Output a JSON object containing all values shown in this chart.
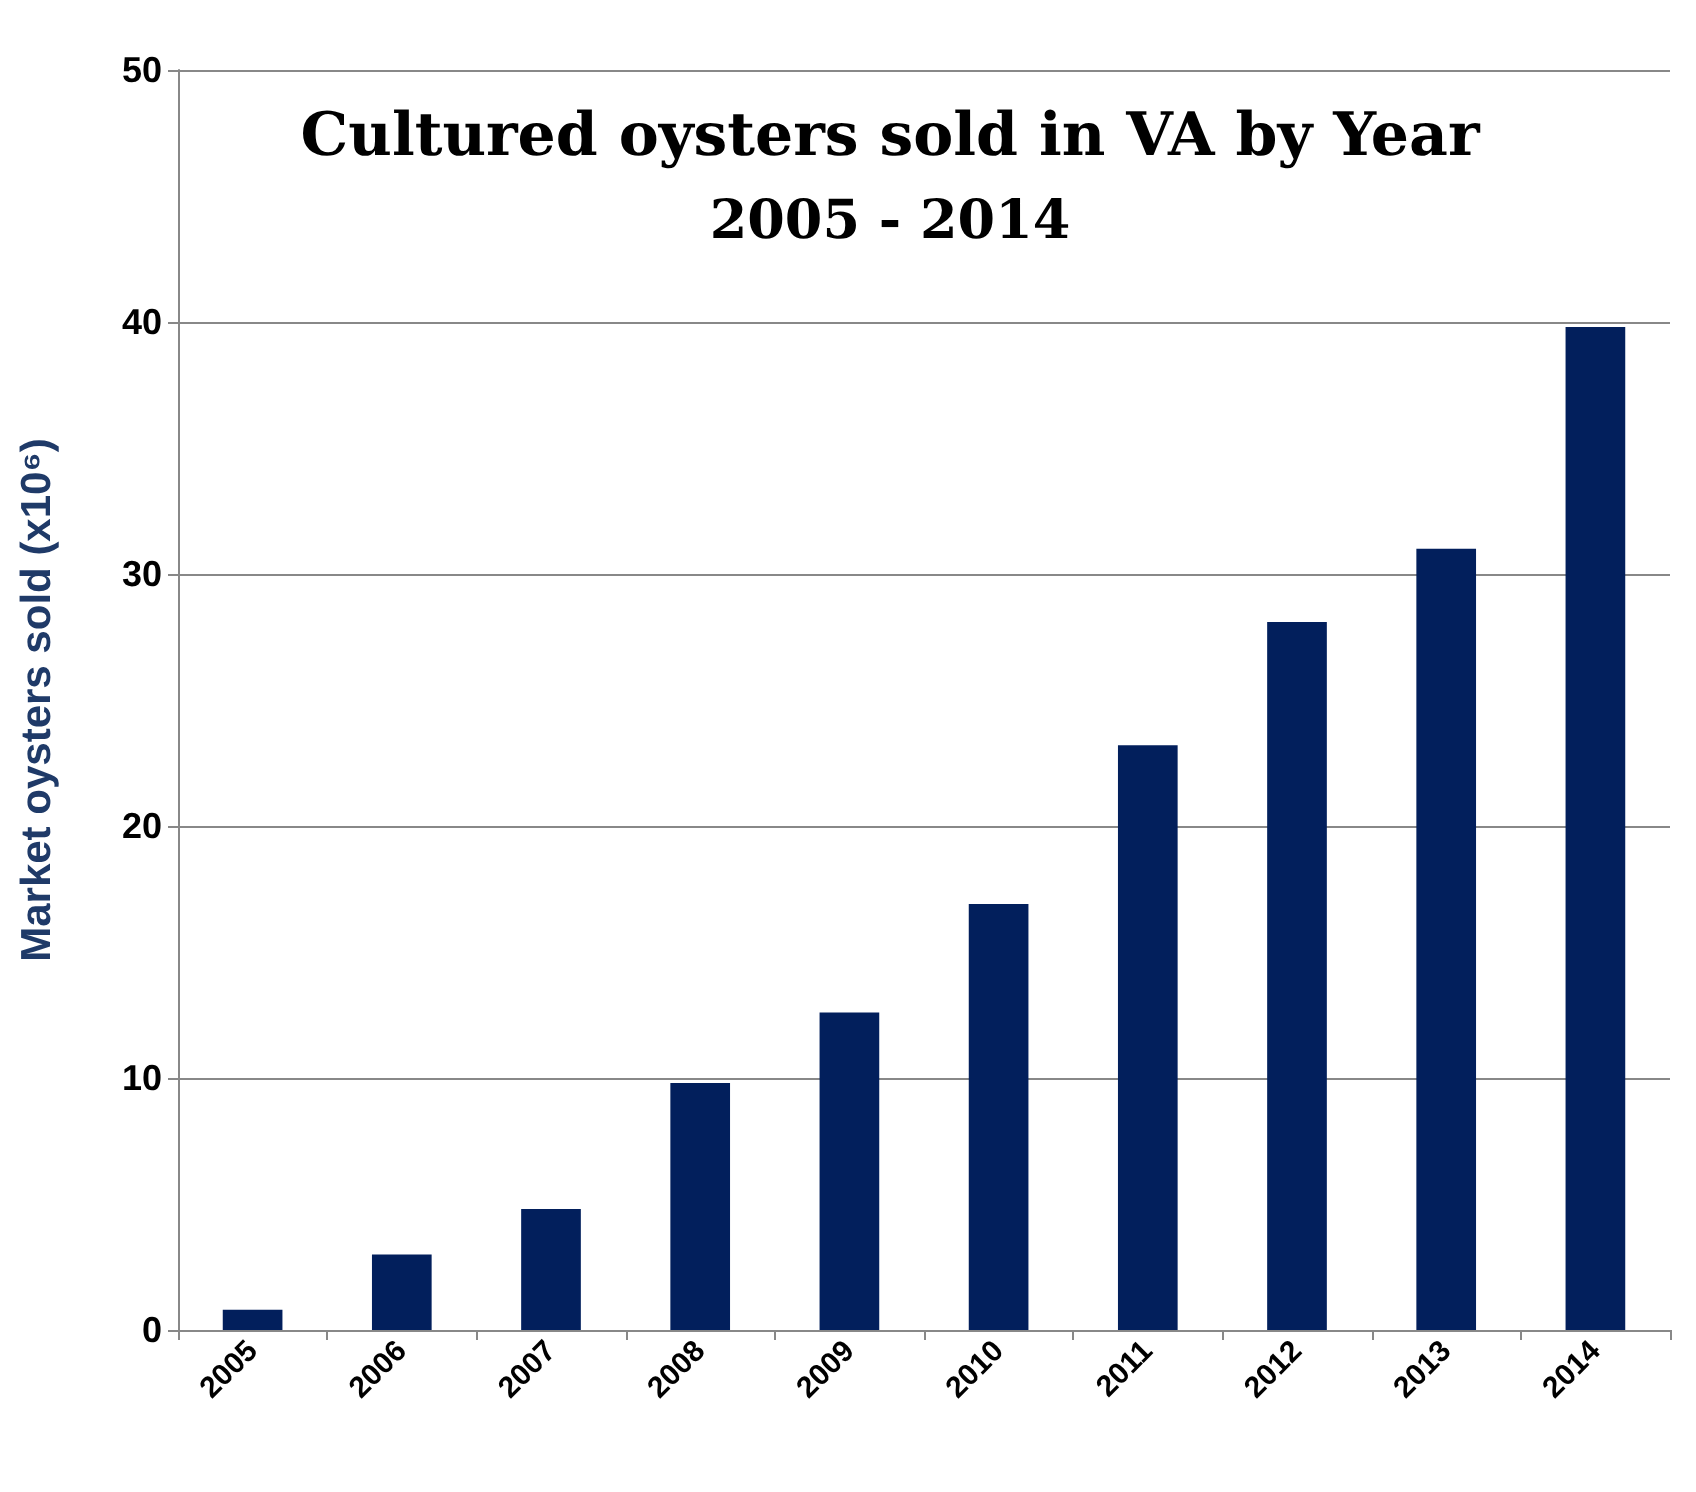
{
  "chart_data": {
    "type": "bar",
    "title": "Cultured oysters sold in VA by Year",
    "subtitle": "2005 - 2014",
    "ylabel": "Market oysters sold (x10⁶)",
    "categories": [
      "2005",
      "2006",
      "2007",
      "2008",
      "2009",
      "2010",
      "2011",
      "2012",
      "2013",
      "2014"
    ],
    "series": [
      {
        "color": "#021f5c",
        "values": [
          0.8,
          3.0,
          4.8,
          9.8,
          12.6,
          16.9,
          23.2,
          28.1,
          31.0,
          39.8
        ]
      }
    ],
    "ylim": [
      0,
      50
    ],
    "yticks": [
      0,
      10,
      20,
      30,
      40,
      50
    ],
    "grid": "y"
  }
}
